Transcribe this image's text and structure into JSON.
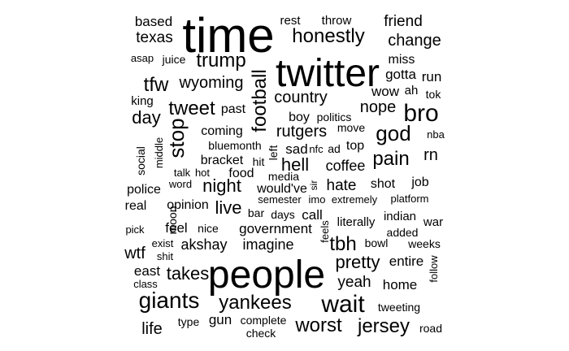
{
  "colors": {
    "background": "#ffffff",
    "text": "#000000"
  },
  "words": [
    {
      "text": "based"
    },
    {
      "text": "time"
    },
    {
      "text": "rest"
    },
    {
      "text": "throw"
    },
    {
      "text": "friend"
    },
    {
      "text": "texas"
    },
    {
      "text": "honestly"
    },
    {
      "text": "change"
    },
    {
      "text": "asap"
    },
    {
      "text": "juice"
    },
    {
      "text": "trump"
    },
    {
      "text": "twitter"
    },
    {
      "text": "miss"
    },
    {
      "text": "gotta"
    },
    {
      "text": "run"
    },
    {
      "text": "tfw"
    },
    {
      "text": "wyoming"
    },
    {
      "text": "football"
    },
    {
      "text": "wow"
    },
    {
      "text": "ah"
    },
    {
      "text": "tok"
    },
    {
      "text": "king"
    },
    {
      "text": "country"
    },
    {
      "text": "bro"
    },
    {
      "text": "tweet"
    },
    {
      "text": "past"
    },
    {
      "text": "nope"
    },
    {
      "text": "day"
    },
    {
      "text": "boy"
    },
    {
      "text": "politics"
    },
    {
      "text": "stop"
    },
    {
      "text": "god"
    },
    {
      "text": "coming"
    },
    {
      "text": "rutgers"
    },
    {
      "text": "move"
    },
    {
      "text": "nba"
    },
    {
      "text": "middle"
    },
    {
      "text": "social"
    },
    {
      "text": "bluemonth"
    },
    {
      "text": "left"
    },
    {
      "text": "sad"
    },
    {
      "text": "nfc"
    },
    {
      "text": "ad"
    },
    {
      "text": "top"
    },
    {
      "text": "pain"
    },
    {
      "text": "rn"
    },
    {
      "text": "bracket"
    },
    {
      "text": "hit"
    },
    {
      "text": "hell"
    },
    {
      "text": "coffee"
    },
    {
      "text": "talk"
    },
    {
      "text": "hot"
    },
    {
      "text": "food"
    },
    {
      "text": "media"
    },
    {
      "text": "sir"
    },
    {
      "text": "job"
    },
    {
      "text": "word"
    },
    {
      "text": "night"
    },
    {
      "text": "would've"
    },
    {
      "text": "hate"
    },
    {
      "text": "shot"
    },
    {
      "text": "police"
    },
    {
      "text": "moon"
    },
    {
      "text": "real"
    },
    {
      "text": "opinion"
    },
    {
      "text": "live"
    },
    {
      "text": "semester"
    },
    {
      "text": "imo"
    },
    {
      "text": "extremely"
    },
    {
      "text": "platform"
    },
    {
      "text": "bar"
    },
    {
      "text": "days"
    },
    {
      "text": "call"
    },
    {
      "text": "indian"
    },
    {
      "text": "feels"
    },
    {
      "text": "literally"
    },
    {
      "text": "war"
    },
    {
      "text": "pick"
    },
    {
      "text": "feel"
    },
    {
      "text": "nice"
    },
    {
      "text": "government"
    },
    {
      "text": "added"
    },
    {
      "text": "exist"
    },
    {
      "text": "akshay"
    },
    {
      "text": "imagine"
    },
    {
      "text": "tbh"
    },
    {
      "text": "bowl"
    },
    {
      "text": "weeks"
    },
    {
      "text": "wtf"
    },
    {
      "text": "shit"
    },
    {
      "text": "pretty"
    },
    {
      "text": "entire"
    },
    {
      "text": "follow"
    },
    {
      "text": "east"
    },
    {
      "text": "takes"
    },
    {
      "text": "people"
    },
    {
      "text": "class"
    },
    {
      "text": "yeah"
    },
    {
      "text": "home"
    },
    {
      "text": "giants"
    },
    {
      "text": "yankees"
    },
    {
      "text": "wait"
    },
    {
      "text": "tweeting"
    },
    {
      "text": "gun"
    },
    {
      "text": "complete"
    },
    {
      "text": "type"
    },
    {
      "text": "worst"
    },
    {
      "text": "jersey"
    },
    {
      "text": "life"
    },
    {
      "text": "check"
    },
    {
      "text": "road"
    }
  ]
}
